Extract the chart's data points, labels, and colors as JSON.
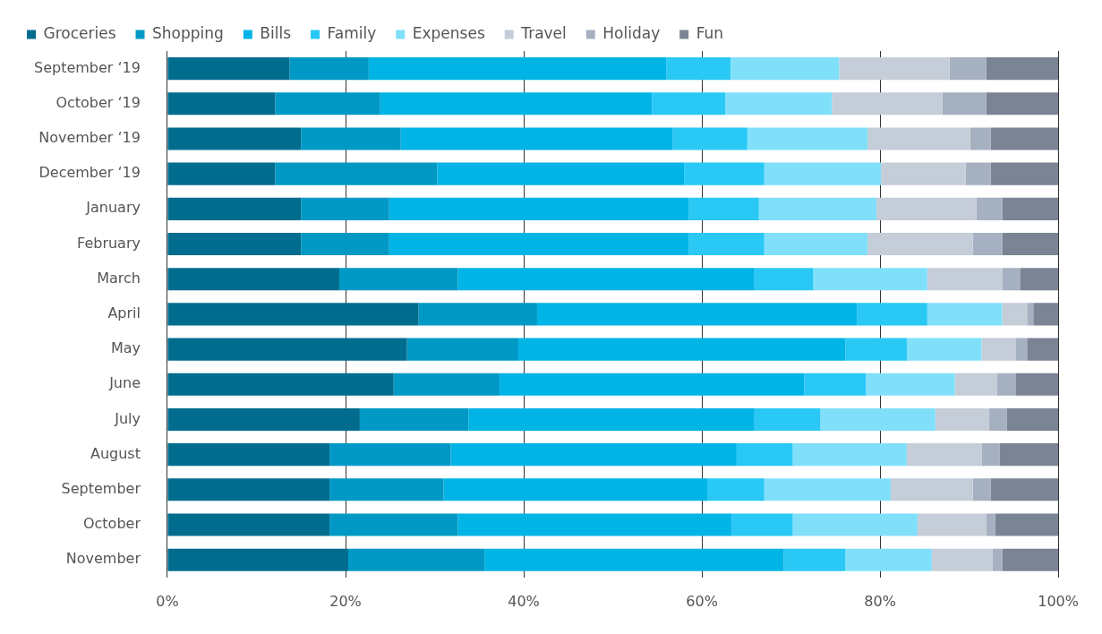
{
  "chart_data": {
    "type": "bar",
    "orientation": "horizontal",
    "stacked": true,
    "categories": [
      "September ‘19",
      "October ‘19",
      "November ‘19",
      "December ‘19",
      "January",
      "February",
      "March",
      "April",
      "May",
      "June",
      "July",
      "August",
      "September",
      "October",
      "November"
    ],
    "series": [
      {
        "name": "Groceries",
        "color": "#006d8f",
        "values": [
          13.7,
          12.1,
          15.0,
          12.1,
          15.0,
          15.0,
          19.3,
          28.2,
          26.9,
          25.4,
          21.6,
          18.2,
          18.2,
          18.2,
          20.3
        ]
      },
      {
        "name": "Shopping",
        "color": "#0099c6",
        "values": [
          8.9,
          11.8,
          11.2,
          18.2,
          9.9,
          9.9,
          13.3,
          13.3,
          12.5,
          11.9,
          12.2,
          13.6,
          12.8,
          14.4,
          15.3
        ]
      },
      {
        "name": "Bills",
        "color": "#00b4e6",
        "values": [
          33.4,
          30.5,
          30.5,
          27.7,
          33.6,
          33.6,
          33.3,
          35.9,
          36.7,
          34.2,
          32.1,
          32.1,
          29.6,
          30.7,
          33.6
        ]
      },
      {
        "name": "Family",
        "color": "#29c8f5",
        "values": [
          7.2,
          8.2,
          8.4,
          9.0,
          7.9,
          8.5,
          6.6,
          7.9,
          6.9,
          6.9,
          7.4,
          6.3,
          6.4,
          6.9,
          6.9
        ]
      },
      {
        "name": "Expenses",
        "color": "#80e0fa",
        "values": [
          12.2,
          12.0,
          13.5,
          13.1,
          13.2,
          11.6,
          12.8,
          8.4,
          8.4,
          10.0,
          12.9,
          12.8,
          14.2,
          14.0,
          9.7
        ]
      },
      {
        "name": "Travel",
        "color": "#c5cdd9",
        "values": [
          12.4,
          12.4,
          11.5,
          9.5,
          11.2,
          11.8,
          8.4,
          2.8,
          3.8,
          4.7,
          6.0,
          8.4,
          9.2,
          7.7,
          6.8
        ]
      },
      {
        "name": "Holiday",
        "color": "#a5b0c0",
        "values": [
          4.1,
          4.9,
          2.3,
          2.8,
          2.9,
          3.3,
          2.0,
          0.7,
          1.3,
          2.1,
          2.0,
          2.0,
          2.0,
          1.0,
          1.1
        ]
      },
      {
        "name": "Fun",
        "color": "#7a8494",
        "values": [
          8.1,
          8.1,
          7.6,
          7.6,
          6.3,
          6.3,
          4.3,
          2.8,
          3.5,
          4.8,
          5.8,
          6.6,
          7.6,
          7.1,
          6.3
        ]
      }
    ],
    "xlim": [
      0,
      100
    ],
    "xticks": [
      {
        "value": 0,
        "label": "0%"
      },
      {
        "value": 20,
        "label": "20%"
      },
      {
        "value": 40,
        "label": "40%"
      },
      {
        "value": 60,
        "label": "60%"
      },
      {
        "value": 80,
        "label": "80%"
      },
      {
        "value": 100,
        "label": "100%"
      }
    ],
    "grid": "x",
    "legend": "top left"
  }
}
